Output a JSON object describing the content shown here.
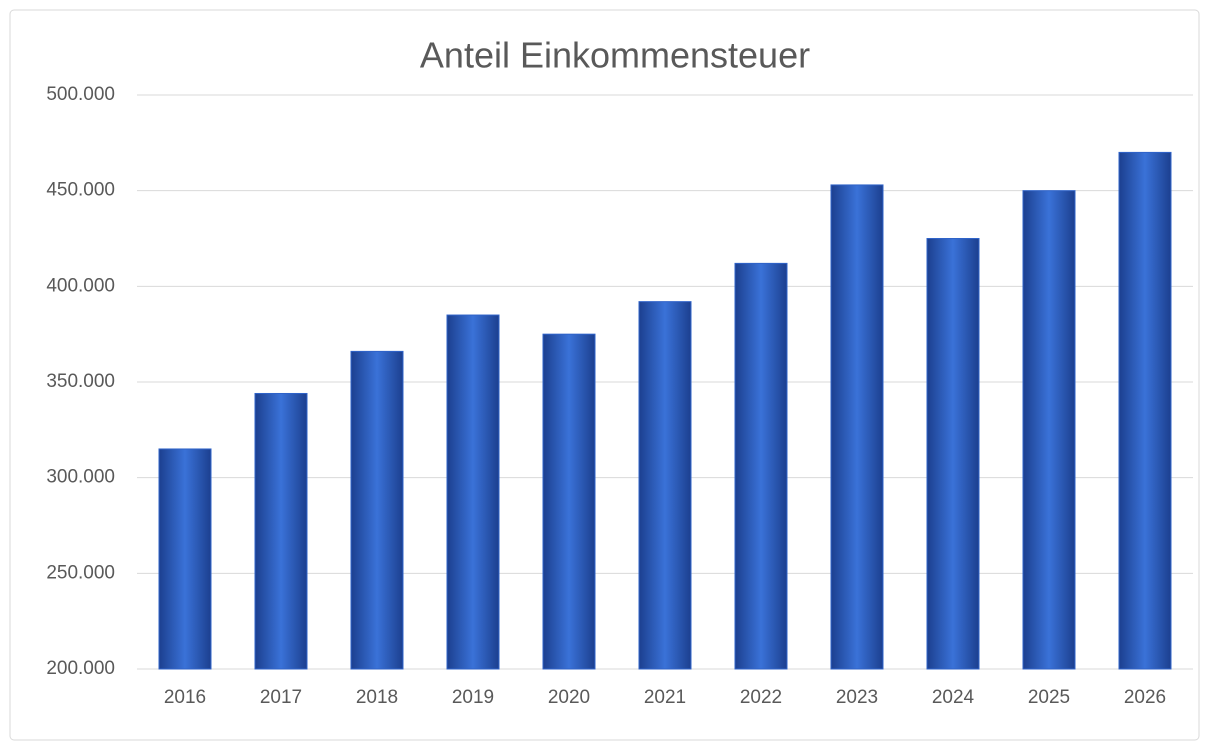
{
  "chart_data": {
    "type": "bar",
    "title": "Anteil Einkommensteuer",
    "categories": [
      "2016",
      "2017",
      "2018",
      "2019",
      "2020",
      "2021",
      "2022",
      "2023",
      "2024",
      "2025",
      "2026"
    ],
    "values": [
      315000,
      344000,
      366000,
      385000,
      375000,
      392000,
      412000,
      453000,
      425000,
      450000,
      470000
    ],
    "color": "#2f63c9",
    "ylim": [
      200000,
      500000
    ],
    "yticks": [
      {
        "value": 200000,
        "label": "200.000"
      },
      {
        "value": 250000,
        "label": "250.000"
      },
      {
        "value": 300000,
        "label": "300.000"
      },
      {
        "value": 350000,
        "label": "350.000"
      },
      {
        "value": 400000,
        "label": "400.000"
      },
      {
        "value": 450000,
        "label": "450.000"
      },
      {
        "value": 500000,
        "label": "500.000"
      }
    ],
    "grid": true
  }
}
